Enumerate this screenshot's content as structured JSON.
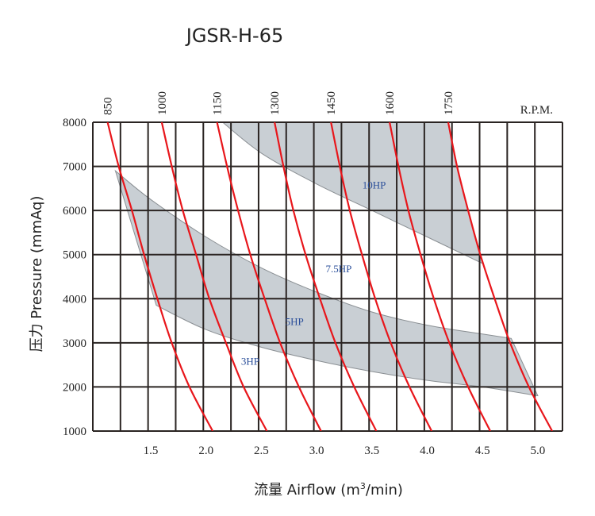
{
  "title": "JGSR-H-65",
  "rpm_label": "R.P.M.",
  "colors": {
    "grid": "#2a2422",
    "curve": "#e8161b",
    "band": "#c9cfd4",
    "band_edge": "#8a8f93",
    "hp_text": "#2b4f9a"
  },
  "chart_data": {
    "type": "line",
    "title": "JGSR-H-65",
    "xlabel": "流量 Airflow (m³/min)",
    "ylabel": "压力 Pressure (mmAq)",
    "xlim": [
      1.03,
      5.25
    ],
    "ylim": [
      1000,
      8000
    ],
    "grid": true,
    "x_ticks": [
      1.5,
      2.0,
      2.5,
      3.0,
      3.5,
      4.0,
      4.5,
      5.0
    ],
    "x_tick_labels": [
      "1.5",
      "2.0",
      "2.5",
      "3.0",
      "3.5",
      "4.0",
      "4.5",
      "5.0"
    ],
    "y_ticks": [
      1000,
      2000,
      3000,
      4000,
      5000,
      6000,
      7000,
      8000
    ],
    "y_tick_labels": [
      "1000",
      "2000",
      "3000",
      "4000",
      "5000",
      "6000",
      "7000",
      "8000"
    ],
    "top_axis_label": "R.P.M.",
    "series": [
      {
        "name": "850",
        "points": [
          [
            1.11,
            8000
          ],
          [
            1.21,
            7000
          ],
          [
            1.33,
            6000
          ],
          [
            1.44,
            5000
          ],
          [
            1.56,
            4000
          ],
          [
            1.69,
            3000
          ],
          [
            1.85,
            2000
          ],
          [
            2.06,
            1000
          ]
        ]
      },
      {
        "name": "1000",
        "points": [
          [
            1.6,
            8000
          ],
          [
            1.69,
            7000
          ],
          [
            1.79,
            6000
          ],
          [
            1.91,
            5000
          ],
          [
            2.03,
            4000
          ],
          [
            2.18,
            3000
          ],
          [
            2.34,
            2000
          ],
          [
            2.55,
            1000
          ]
        ]
      },
      {
        "name": "1150",
        "points": [
          [
            2.1,
            8000
          ],
          [
            2.19,
            7000
          ],
          [
            2.29,
            6000
          ],
          [
            2.4,
            5000
          ],
          [
            2.53,
            4000
          ],
          [
            2.67,
            3000
          ],
          [
            2.84,
            2000
          ],
          [
            3.04,
            1000
          ]
        ]
      },
      {
        "name": "1300",
        "points": [
          [
            2.62,
            8000
          ],
          [
            2.7,
            7000
          ],
          [
            2.79,
            6000
          ],
          [
            2.9,
            5000
          ],
          [
            3.03,
            4000
          ],
          [
            3.17,
            3000
          ],
          [
            3.34,
            2000
          ],
          [
            3.54,
            1000
          ]
        ]
      },
      {
        "name": "1450",
        "points": [
          [
            3.13,
            8000
          ],
          [
            3.21,
            7000
          ],
          [
            3.3,
            6000
          ],
          [
            3.41,
            5000
          ],
          [
            3.53,
            4000
          ],
          [
            3.67,
            3000
          ],
          [
            3.84,
            2000
          ],
          [
            4.04,
            1000
          ]
        ]
      },
      {
        "name": "1600",
        "points": [
          [
            3.66,
            8000
          ],
          [
            3.74,
            7000
          ],
          [
            3.83,
            6000
          ],
          [
            3.94,
            5000
          ],
          [
            4.06,
            4000
          ],
          [
            4.2,
            3000
          ],
          [
            4.37,
            2000
          ],
          [
            4.57,
            1000
          ]
        ]
      },
      {
        "name": "1750",
        "points": [
          [
            4.19,
            8000
          ],
          [
            4.27,
            7000
          ],
          [
            4.37,
            6000
          ],
          [
            4.48,
            5000
          ],
          [
            4.61,
            4000
          ],
          [
            4.75,
            3000
          ],
          [
            4.92,
            2000
          ],
          [
            5.13,
            1000
          ]
        ]
      }
    ],
    "power_bands": [
      {
        "name": "3HP/5HP band",
        "upper": [
          [
            1.18,
            6900
          ],
          [
            1.5,
            6250
          ],
          [
            2.0,
            5400
          ],
          [
            2.5,
            4700
          ],
          [
            3.0,
            4150
          ],
          [
            3.5,
            3700
          ],
          [
            4.0,
            3400
          ],
          [
            4.5,
            3200
          ],
          [
            4.76,
            3100
          ]
        ],
        "lower": [
          [
            1.55,
            3850
          ],
          [
            2.0,
            3300
          ],
          [
            2.5,
            2900
          ],
          [
            3.0,
            2600
          ],
          [
            3.5,
            2350
          ],
          [
            4.0,
            2150
          ],
          [
            4.5,
            2000
          ],
          [
            5.0,
            1800
          ]
        ]
      },
      {
        "name": "7.5HP/10HP band",
        "upper": [
          [
            2.15,
            8000
          ],
          [
            4.25,
            8000
          ]
        ],
        "lower": [
          [
            2.15,
            8000
          ],
          [
            2.5,
            7300
          ],
          [
            3.0,
            6600
          ],
          [
            3.5,
            6000
          ],
          [
            4.0,
            5400
          ],
          [
            4.5,
            4800
          ]
        ]
      }
    ],
    "annotations": [
      {
        "text": "10HP",
        "x": 3.52,
        "y": 6500
      },
      {
        "text": "7.5HP",
        "x": 3.2,
        "y": 4600
      },
      {
        "text": "5HP",
        "x": 2.8,
        "y": 3400
      },
      {
        "text": "3HP",
        "x": 2.4,
        "y": 2500
      }
    ]
  }
}
